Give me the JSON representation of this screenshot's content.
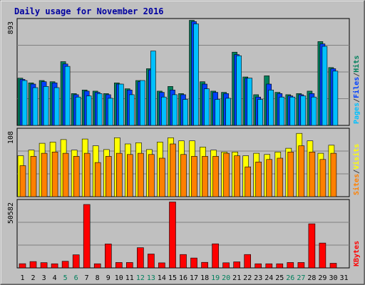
{
  "chart_data": {
    "type": "bar",
    "title": "Daily usage for November 2016",
    "days": [
      "1",
      "2",
      "3",
      "4",
      "5",
      "6",
      "7",
      "8",
      "9",
      "10",
      "11",
      "12",
      "13",
      "14",
      "15",
      "16",
      "17",
      "18",
      "19",
      "20",
      "21",
      "22",
      "23",
      "24",
      "25",
      "26",
      "27",
      "28",
      "29",
      "30",
      "31"
    ],
    "weekend_days": [
      5,
      6,
      12,
      13,
      19,
      20,
      26,
      27
    ],
    "panels": [
      {
        "id": "top",
        "max_label": "893",
        "ylim": [
          0,
          893
        ],
        "legend": [
          {
            "text": "Pages",
            "color": "#00c0ff"
          },
          {
            "text": "/",
            "color": "#404040"
          },
          {
            "text": "Files",
            "color": "#0040ff"
          },
          {
            "text": "/",
            "color": "#404040"
          },
          {
            "text": "Hits",
            "color": "#00805c"
          }
        ],
        "series": [
          {
            "name": "Hits",
            "color": "#00805c",
            "values": [
              400,
              360,
              380,
              370,
              540,
              270,
              300,
              290,
              270,
              360,
              310,
              380,
              480,
              290,
              330,
              270,
              890,
              370,
              290,
              280,
              620,
              410,
              260,
              420,
              280,
              260,
              270,
              290,
              710,
              490,
              0
            ]
          },
          {
            "name": "Files",
            "color": "#0040ff",
            "values": [
              390,
              350,
              370,
              360,
              520,
              260,
              290,
              280,
              260,
              350,
              300,
              370,
              470,
              280,
              300,
              260,
              880,
              350,
              280,
              270,
              600,
              400,
              240,
              350,
              270,
              250,
              260,
              270,
              690,
              480,
              0
            ]
          },
          {
            "name": "Pages",
            "color": "#00c0ff",
            "values": [
              380,
              320,
              330,
              320,
              500,
              240,
              250,
              270,
              230,
              350,
              260,
              380,
              630,
              240,
              260,
              220,
              860,
              310,
              220,
              230,
              590,
              400,
              220,
              300,
              240,
              240,
              250,
              240,
              670,
              460,
              0
            ]
          }
        ]
      },
      {
        "id": "mid",
        "max_label": "108",
        "ylim": [
          0,
          108
        ],
        "legend": [
          {
            "text": "Sites",
            "color": "#ff8000"
          },
          {
            "text": "/",
            "color": "#404040"
          },
          {
            "text": "Visits",
            "color": "#ffff00"
          }
        ],
        "series": [
          {
            "name": "Visits",
            "color": "#ffff00",
            "values": [
              66,
              75,
              86,
              88,
              92,
              75,
              93,
              82,
              76,
              95,
              85,
              87,
              76,
              88,
              95,
              90,
              90,
              80,
              75,
              72,
              72,
              66,
              70,
              68,
              72,
              78,
              102,
              90,
              70,
              83,
              0
            ]
          },
          {
            "name": "Sites",
            "color": "#ff8000",
            "values": [
              50,
              65,
              70,
              72,
              70,
              65,
              70,
              55,
              65,
              70,
              68,
              70,
              68,
              62,
              85,
              68,
              65,
              65,
              65,
              70,
              66,
              48,
              56,
              60,
              62,
              72,
              82,
              72,
              60,
              70,
              0
            ]
          }
        ]
      },
      {
        "id": "bot",
        "max_label": "50582",
        "ylim": [
          0,
          50582
        ],
        "legend": [
          {
            "text": "KBytes",
            "color": "#ff0000"
          }
        ],
        "series": [
          {
            "name": "KBytes",
            "color": "#ff0000",
            "values": [
              3200,
              4800,
              4000,
              3100,
              5000,
              9900,
              47900,
              3100,
              18100,
              4100,
              4100,
              15300,
              10500,
              3800,
              49800,
              10100,
              7500,
              4200,
              18200,
              3900,
              4600,
              10100,
              3100,
              3100,
              3100,
              4100,
              4100,
              33300,
              18800,
              3500,
              0
            ]
          }
        ]
      }
    ]
  }
}
